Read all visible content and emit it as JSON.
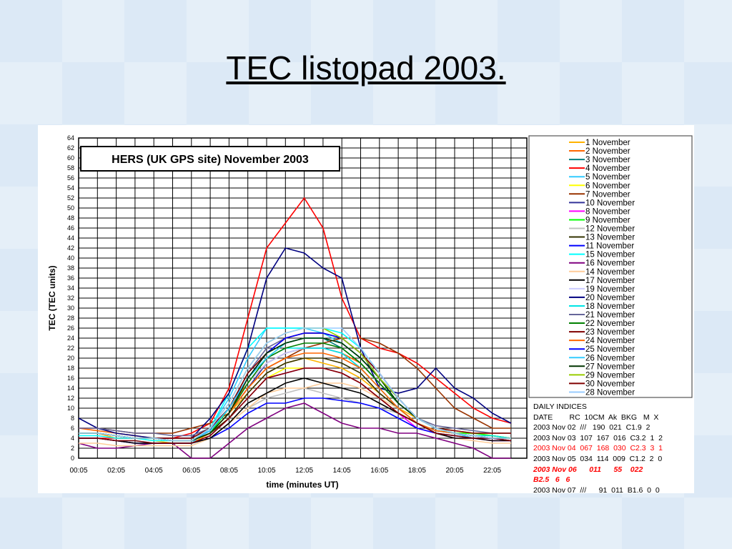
{
  "slide_title": "TEC listopad 2003.",
  "chart_data": {
    "type": "line",
    "title": "HERS (UK GPS site) November 2003",
    "xlabel": "time (minutes UT)",
    "ylabel": "TEC (TEC units)",
    "ylim": [
      0,
      64
    ],
    "x_hours": [
      0,
      1,
      2,
      3,
      4,
      5,
      6,
      7,
      8,
      9,
      10,
      11,
      12,
      13,
      14,
      15,
      16,
      17,
      18,
      19,
      20,
      21,
      22,
      23
    ],
    "xtick_labels": [
      "00:05",
      "02:05",
      "04:05",
      "06:05",
      "08:05",
      "10:05",
      "12:05",
      "14:05",
      "16:05",
      "18:05",
      "20:05",
      "22:05"
    ],
    "ytick_labels": [
      "0",
      "2",
      "4",
      "6",
      "8",
      "10",
      "12",
      "14",
      "16",
      "18",
      "20",
      "22",
      "24",
      "26",
      "28",
      "30",
      "32",
      "34",
      "36",
      "38",
      "40",
      "42",
      "44",
      "46",
      "48",
      "50",
      "52",
      "54",
      "56",
      "58",
      "60",
      "62",
      "64"
    ],
    "grid": true,
    "legend_position": "right",
    "series": [
      {
        "name": "1 November",
        "color": "#ffb300",
        "values": [
          5,
          5,
          4,
          4,
          3.5,
          3,
          3,
          5,
          9,
          13,
          17,
          19,
          20,
          19,
          18,
          16,
          13,
          10,
          8,
          6,
          5,
          5,
          4.5,
          4
        ]
      },
      {
        "name": "2 November",
        "color": "#ff6600",
        "values": [
          6,
          5.5,
          5,
          4.5,
          4,
          4,
          4,
          6,
          10,
          15,
          19,
          21,
          22,
          22,
          21,
          19,
          15,
          11,
          8,
          6,
          5.5,
          5,
          5,
          5
        ]
      },
      {
        "name": "3 November",
        "color": "#008080",
        "values": [
          5,
          5,
          4.5,
          4,
          4,
          3.5,
          3.5,
          5.5,
          10,
          16,
          21,
          23,
          24,
          24,
          22,
          19,
          15,
          11,
          8,
          6,
          5,
          4.5,
          4,
          4
        ]
      },
      {
        "name": "4 November",
        "color": "#ff0000",
        "values": [
          4,
          4,
          4,
          4,
          4,
          4,
          5,
          7,
          14,
          28,
          42,
          47,
          52,
          46,
          32,
          24,
          22,
          21,
          19,
          16,
          13,
          10,
          8,
          7
        ]
      },
      {
        "name": "5 November",
        "color": "#33ccff",
        "values": [
          4,
          4,
          3.5,
          3.5,
          3,
          3,
          3,
          6,
          12,
          20,
          26,
          26,
          26,
          25,
          23,
          20,
          16,
          12,
          8,
          6,
          5,
          4,
          4,
          3.5
        ]
      },
      {
        "name": "6 November",
        "color": "#ffff00",
        "values": [
          5,
          5,
          4.5,
          4,
          4,
          3.5,
          3.5,
          5,
          8,
          12,
          16,
          18,
          18,
          18,
          17,
          15,
          12,
          9,
          7,
          5.5,
          5,
          5,
          4.5,
          4
        ]
      },
      {
        "name": "7 November",
        "color": "#993300",
        "values": [
          6,
          6,
          5.5,
          5,
          5,
          5,
          6,
          7,
          9,
          14,
          18,
          20,
          22,
          23,
          24,
          24,
          23,
          21,
          18,
          14,
          10,
          8,
          6,
          6
        ]
      },
      {
        "name": "10 November",
        "color": "#333399",
        "values": [
          5,
          5,
          4.5,
          4,
          4,
          3.5,
          3.5,
          5,
          9,
          14,
          19,
          21,
          22,
          22,
          21,
          18,
          14,
          10,
          7,
          5.5,
          5,
          4.5,
          4,
          4
        ]
      },
      {
        "name": "8 November",
        "color": "#ff00ff",
        "values": [
          4,
          4,
          3.5,
          3,
          3,
          3,
          3,
          4.5,
          8,
          12,
          16,
          17,
          18,
          18,
          17,
          15,
          12,
          9,
          6,
          5,
          4,
          4,
          3.5,
          3.5
        ]
      },
      {
        "name": "9 November",
        "color": "#00ff00",
        "values": [
          5,
          5,
          4.5,
          4,
          4,
          3.5,
          3.5,
          5,
          10,
          16,
          20,
          23,
          24,
          24,
          23,
          20,
          16,
          11,
          8,
          6,
          5,
          5,
          4.5,
          4
        ]
      },
      {
        "name": "12 November",
        "color": "#c0c0c0",
        "values": [
          4,
          4,
          3.5,
          3,
          3,
          3,
          3,
          4,
          7,
          10,
          12,
          13,
          14,
          13,
          12,
          11,
          10,
          9,
          7,
          5,
          4.5,
          4,
          4,
          3.5
        ]
      },
      {
        "name": "13 November",
        "color": "#333300",
        "values": [
          5,
          5,
          4.5,
          4,
          4,
          3.5,
          3.5,
          5,
          8,
          13,
          17,
          19,
          20,
          20,
          19,
          17,
          13,
          10,
          7,
          5.5,
          5,
          4.5,
          4,
          4
        ]
      },
      {
        "name": "11 November",
        "color": "#0000ff",
        "values": [
          4,
          4,
          3.5,
          3,
          3,
          3,
          3,
          4,
          6,
          9,
          11,
          11,
          12,
          12,
          11.5,
          11,
          10,
          8,
          6,
          5,
          4.5,
          4,
          4,
          3.5
        ]
      },
      {
        "name": "15 November",
        "color": "#00ffff",
        "values": [
          4.5,
          4.5,
          4,
          4,
          3.5,
          3.5,
          3.5,
          6,
          13,
          22,
          26,
          26,
          26,
          26,
          25,
          22,
          17,
          12,
          8,
          6,
          5,
          4.5,
          4,
          4
        ]
      },
      {
        "name": "16 November",
        "color": "#800080",
        "values": [
          3,
          2,
          2,
          2.5,
          3,
          3,
          0,
          0,
          3,
          6,
          8,
          10,
          11,
          9,
          7,
          6,
          6,
          5,
          5,
          4,
          3,
          2,
          0,
          0
        ]
      },
      {
        "name": "14 November",
        "color": "#ffcc99",
        "values": [
          3,
          3,
          2.5,
          2.5,
          2.5,
          2.5,
          2.5,
          4,
          7,
          10,
          13,
          14,
          14,
          15,
          15,
          14,
          12,
          10,
          7,
          5,
          4,
          3.5,
          3,
          3
        ]
      },
      {
        "name": "17 November",
        "color": "#000000",
        "values": [
          4,
          4,
          3.5,
          3,
          3,
          3,
          3,
          4,
          7,
          11,
          13,
          15,
          16,
          15,
          14,
          13,
          11,
          9,
          7,
          5,
          4,
          4,
          3.5,
          3.5
        ]
      },
      {
        "name": "19 November",
        "color": "#ccccff",
        "values": [
          5,
          5,
          4.5,
          4,
          4,
          3.5,
          3.5,
          5,
          9,
          15,
          19,
          21,
          22,
          22,
          21,
          18,
          14,
          10,
          7,
          5.5,
          5,
          4.5,
          4,
          4
        ]
      },
      {
        "name": "20 November",
        "color": "#000080",
        "values": [
          8,
          6,
          5,
          4.5,
          4,
          4,
          4,
          8,
          13,
          22,
          36,
          42,
          41,
          38,
          36,
          22,
          14,
          13,
          14,
          18,
          14,
          12,
          9,
          7
        ]
      },
      {
        "name": "18 November",
        "color": "#00e5e5",
        "values": [
          5,
          5,
          4.5,
          4,
          4,
          3.5,
          3.5,
          5.5,
          10,
          16,
          20,
          22,
          22,
          22,
          21,
          18,
          14,
          10,
          7,
          5.5,
          5,
          4.5,
          4.5,
          4
        ]
      },
      {
        "name": "21 November",
        "color": "#666699",
        "values": [
          6,
          6,
          5.5,
          5,
          5,
          4.5,
          4.5,
          6,
          10,
          17,
          22,
          24,
          25,
          25,
          24,
          21,
          17,
          12,
          8,
          6.5,
          6,
          5.5,
          5,
          5
        ]
      },
      {
        "name": "22 November",
        "color": "#008000",
        "values": [
          5,
          5,
          4.5,
          4,
          4,
          3.5,
          3.5,
          5,
          9,
          15,
          20,
          22,
          23,
          23,
          22,
          19,
          15,
          11,
          8,
          6,
          5,
          4.5,
          4,
          4
        ]
      },
      {
        "name": "23 November",
        "color": "#800000",
        "values": [
          5,
          5,
          4.5,
          4,
          4,
          4,
          4,
          6,
          10,
          17,
          21,
          24,
          25,
          25,
          24,
          21,
          17,
          12,
          8,
          6,
          5.5,
          5,
          5,
          5
        ]
      },
      {
        "name": "24 November",
        "color": "#ff6600",
        "values": [
          5,
          5,
          4.5,
          4,
          4,
          3.5,
          3.5,
          5,
          9,
          14,
          18,
          20,
          21,
          21,
          20,
          18,
          14,
          10,
          7,
          5.5,
          5,
          4.5,
          4,
          4
        ]
      },
      {
        "name": "25 November",
        "color": "#0000ff",
        "values": [
          5,
          5,
          4.5,
          4,
          4,
          3.5,
          3.5,
          5.5,
          10,
          16,
          21,
          24,
          25,
          25,
          24,
          21,
          16,
          12,
          8,
          6,
          5,
          4.5,
          4,
          4
        ]
      },
      {
        "name": "26 November",
        "color": "#33ccff",
        "values": [
          5,
          5,
          4.5,
          4,
          4,
          3.5,
          3.5,
          5.5,
          10,
          16,
          20,
          23,
          24,
          24,
          23,
          20,
          16,
          11,
          8,
          6,
          5,
          4.5,
          4,
          4
        ]
      },
      {
        "name": "27 November",
        "color": "#003300",
        "values": [
          5,
          5,
          4.5,
          4,
          4,
          3.5,
          3.5,
          5,
          9,
          16,
          21,
          23,
          24,
          24,
          23,
          20,
          16,
          11,
          8,
          6,
          5,
          4.5,
          4,
          4
        ]
      },
      {
        "name": "29 November",
        "color": "#99cc00",
        "values": [
          5,
          5,
          4.5,
          4,
          4,
          3.5,
          3.5,
          6,
          11,
          18,
          23,
          25,
          26,
          26,
          24,
          21,
          16,
          12,
          8,
          6,
          5,
          4.5,
          4,
          4
        ]
      },
      {
        "name": "30 November",
        "color": "#800000",
        "values": [
          4,
          4,
          3.5,
          3.5,
          3,
          3,
          3,
          4.5,
          8,
          12,
          16,
          17,
          18,
          18,
          17,
          15,
          12,
          9,
          7,
          5,
          4.5,
          4,
          4,
          3.5
        ]
      },
      {
        "name": "28 November",
        "color": "#99ccff",
        "values": [
          5,
          5,
          4.5,
          4,
          4,
          3.5,
          3.5,
          6,
          11,
          18,
          23,
          25,
          26,
          26,
          26,
          22,
          17,
          12,
          8,
          6,
          5,
          4.5,
          4,
          4
        ]
      }
    ],
    "daily_indices": {
      "heading": "DAILY INDICES",
      "columns": "DATE        RC  10CM  Ak  BKG   M  X",
      "rows": [
        {
          "text": "2003 Nov 02  ///   190  021  C1.9  2",
          "color": "#000000"
        },
        {
          "text": "2003 Nov 03  107  167  016  C3.2  1  2",
          "color": "#000000"
        },
        {
          "text": "2003 Nov 04  067  168  030  C2.3  3  1",
          "color": "#ff0000"
        },
        {
          "text": "2003 Nov 05  034  114  009  C1.2  2  0",
          "color": "#000000"
        },
        {
          "text": "2003 Nov 06      011      55    022",
          "color": "#ff0000"
        },
        {
          "text": "B2.5   6   6",
          "color": "#ff0000"
        },
        {
          "text": "2003 Nov 07  ///      91  011  B1.6  0  0",
          "color": "#000000"
        }
      ]
    }
  }
}
